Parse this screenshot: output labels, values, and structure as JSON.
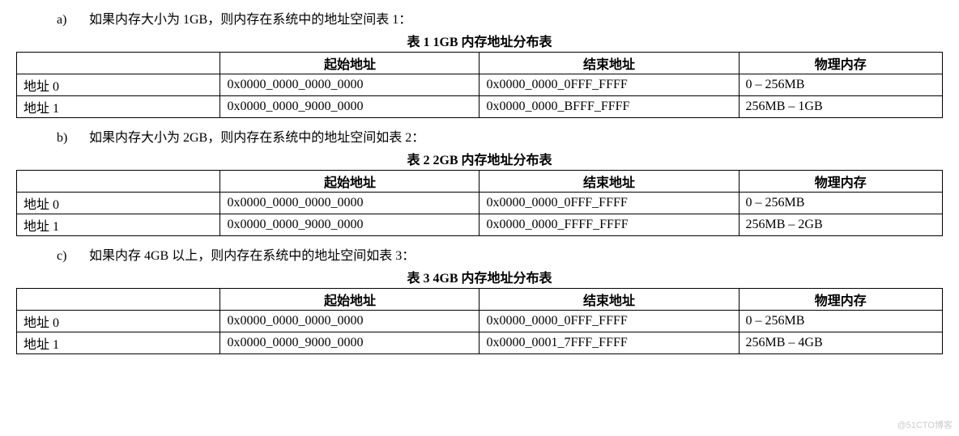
{
  "sections": [
    {
      "marker": "a)",
      "intro": "如果内存大小为 1GB，则内存在系统中的地址空间表 1：",
      "caption": "表 1  1GB 内存地址分布表",
      "columns": [
        "",
        "起始地址",
        "结束地址",
        "物理内存"
      ],
      "rows": [
        [
          "地址 0",
          "0x0000_0000_0000_0000",
          "0x0000_0000_0FFF_FFFF",
          "0 – 256MB"
        ],
        [
          "地址 1",
          "0x0000_0000_9000_0000",
          "0x0000_0000_BFFF_FFFF",
          "256MB – 1GB"
        ]
      ]
    },
    {
      "marker": "b)",
      "intro": "如果内存大小为 2GB，则内存在系统中的地址空间如表 2：",
      "caption": "表 2  2GB 内存地址分布表",
      "columns": [
        "",
        "起始地址",
        "结束地址",
        "物理内存"
      ],
      "rows": [
        [
          "地址 0",
          "0x0000_0000_0000_0000",
          "0x0000_0000_0FFF_FFFF",
          "0 – 256MB"
        ],
        [
          "地址 1",
          "0x0000_0000_9000_0000",
          "0x0000_0000_FFFF_FFFF",
          "256MB – 2GB"
        ]
      ]
    },
    {
      "marker": "c)",
      "intro": "如果内存 4GB 以上，则内存在系统中的地址空间如表 3：",
      "caption": "表 3  4GB 内存地址分布表",
      "columns": [
        "",
        "起始地址",
        "结束地址",
        "物理内存"
      ],
      "rows": [
        [
          "地址 0",
          "0x0000_0000_0000_0000",
          "0x0000_0000_0FFF_FFFF",
          "0 – 256MB"
        ],
        [
          "地址 1",
          "0x0000_0000_9000_0000",
          "0x0000_0001_7FFF_FFFF",
          "256MB – 4GB"
        ]
      ]
    }
  ],
  "watermark": "@51CTO博客",
  "style": {
    "background_color": "#ffffff",
    "text_color": "#000000",
    "border_color": "#000000",
    "font_family": "SimSun, 宋体, serif",
    "font_size_pt": 12,
    "caption_font_weight": "bold",
    "header_font_weight": "bold",
    "col_widths_percent": [
      22,
      28,
      28,
      22
    ],
    "watermark_color": "#cccccc"
  }
}
